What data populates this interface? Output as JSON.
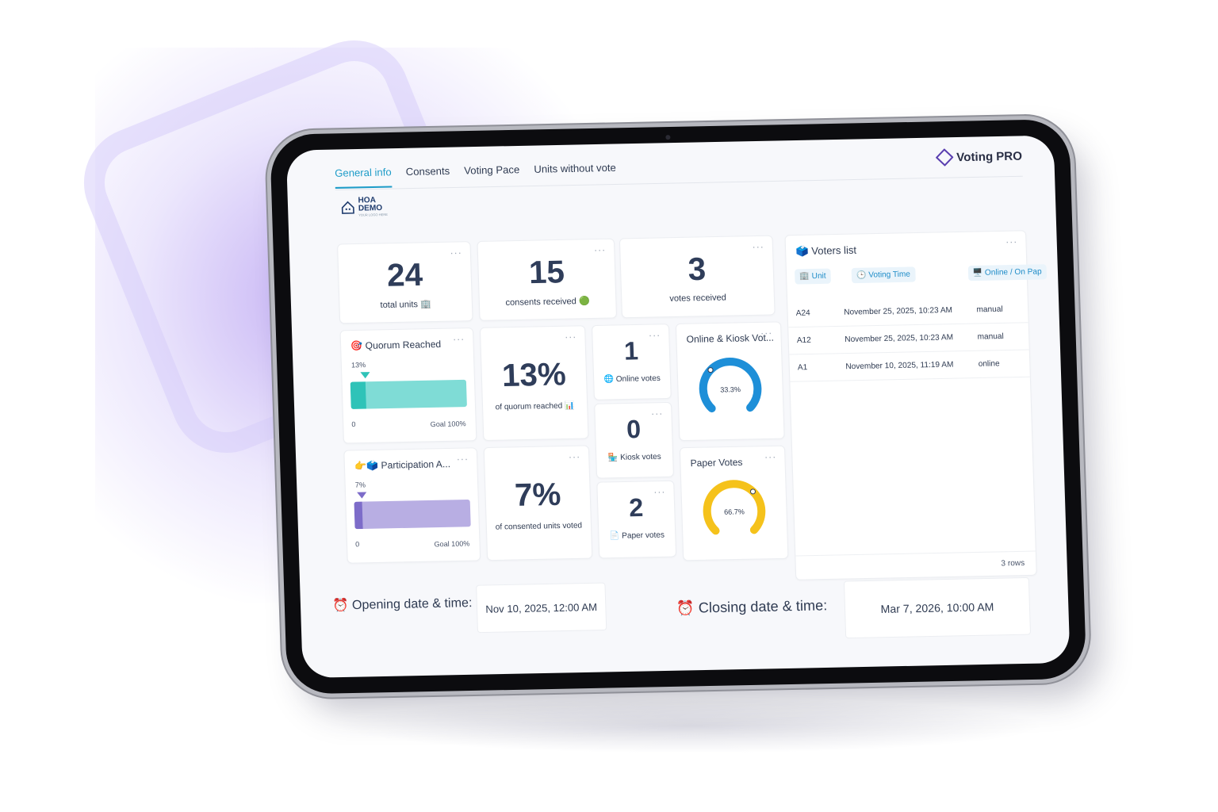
{
  "tabs": [
    "General info",
    "Consents",
    "Voting Pace",
    "Units without vote"
  ],
  "brand": {
    "name_prefix": "Voting",
    "name_suffix": "PRO"
  },
  "hoa_logo": {
    "line1": "HOA",
    "line2": "DEMO",
    "tagline": "YOUR LOGO HERE"
  },
  "stats": {
    "total_units": {
      "value": "24",
      "label": "total units 🏢"
    },
    "consents": {
      "value": "15",
      "label": "consents received 🟢"
    },
    "votes": {
      "value": "3",
      "label": "votes received"
    }
  },
  "quorum": {
    "title": "🎯 Quorum Reached",
    "marker_label": "13%",
    "percent": 13,
    "min_label": "0",
    "goal_label": "Goal 100%",
    "big_value": "13%",
    "big_label": "of quorum reached 📊"
  },
  "participation": {
    "title": "👉🗳️ Participation A...",
    "marker_label": "7%",
    "percent": 7,
    "min_label": "0",
    "goal_label": "Goal 100%",
    "big_value": "7%",
    "big_label": "of consented units voted"
  },
  "counts": {
    "online": {
      "value": "1",
      "label": "🌐 Online votes"
    },
    "kiosk": {
      "value": "0",
      "label": "🏪 Kiosk votes"
    },
    "paper": {
      "value": "2",
      "label": "📄 Paper votes"
    }
  },
  "gauges": {
    "online_kiosk": {
      "title": "Online & Kiosk Vot...",
      "value_label": "33.3%",
      "fraction": 0.333,
      "color": "#1e8fd8"
    },
    "paper": {
      "title": "Paper Votes",
      "value_label": "66.7%",
      "fraction": 0.667,
      "color": "#f5c21b"
    }
  },
  "voters": {
    "title": "🗳️ Voters list",
    "columns": [
      "🏢 Unit",
      "🕒 Voting Time",
      "🖥️ Online / On Pap"
    ],
    "rows": [
      {
        "unit": "A24",
        "time": "November 25, 2025, 10:23 AM",
        "method": "manual"
      },
      {
        "unit": "A12",
        "time": "November 25, 2025, 10:23 AM",
        "method": "manual"
      },
      {
        "unit": "A1",
        "time": "November 10, 2025, 11:19 AM",
        "method": "online"
      }
    ],
    "footer": "3 rows"
  },
  "opening": {
    "label": "⏰ Opening date & time:",
    "value": "Nov 10, 2025, 12:00 AM"
  },
  "closing": {
    "label": "⏰ Closing date & time:",
    "value": "Mar 7, 2026, 10:00 AM"
  },
  "colors": {
    "accent": "#1e9cc8",
    "quorum_bar": "#7fdcd6",
    "quorum_fill": "#2fc3b8",
    "participation_bar": "#b8aee3",
    "participation_fill": "#7d6cc9"
  },
  "icons": [
    "target-icon",
    "pointing-hand-icon",
    "ballot-box-icon",
    "globe-icon",
    "kiosk-icon",
    "paper-icon",
    "alarm-clock-icon",
    "building-icon",
    "clock-icon",
    "computer-icon"
  ]
}
